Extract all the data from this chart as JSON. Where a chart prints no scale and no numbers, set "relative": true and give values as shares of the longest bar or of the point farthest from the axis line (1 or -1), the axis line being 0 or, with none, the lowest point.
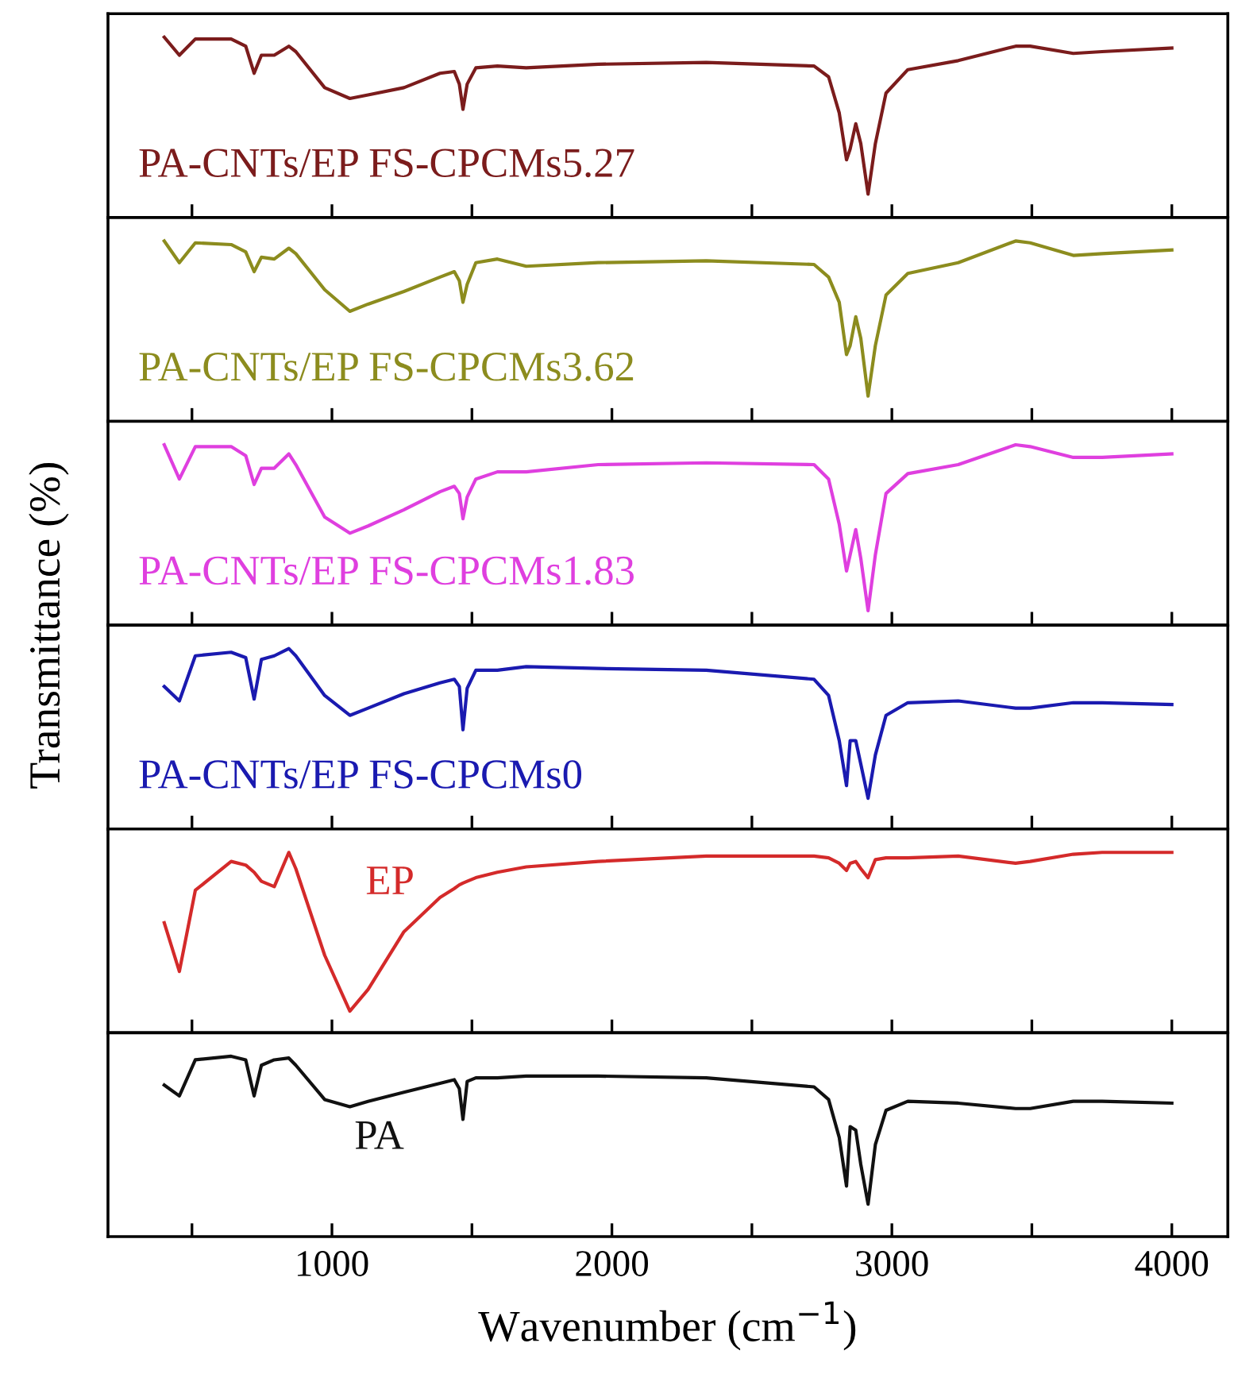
{
  "chart_data": [
    {
      "type": "line",
      "relative": true,
      "tick_labels": false,
      "xlim": [
        200,
        4200
      ],
      "xticks": [
        {
          "value": 500,
          "label": null
        },
        {
          "value": 1000,
          "label": null
        },
        {
          "value": 1500,
          "label": null
        },
        {
          "value": 2000,
          "label": null
        },
        {
          "value": 2500,
          "label": null
        },
        {
          "value": 3000,
          "label": null
        },
        {
          "value": 3500,
          "label": null
        },
        {
          "value": 4000,
          "label": null
        }
      ],
      "x": [
        401,
        455,
        512,
        640,
        692,
        722,
        748,
        794,
        846,
        871,
        974,
        1064,
        1129,
        1257,
        1386,
        1437,
        1455,
        1468,
        1483,
        1514,
        1591,
        1694,
        1951,
        2337,
        2722,
        2774,
        2812,
        2838,
        2851,
        2871,
        2889,
        2915,
        2941,
        2979,
        3057,
        3237,
        3442,
        3494,
        3648,
        3751,
        4000
      ],
      "series": [
        {
          "name": "PA-CNTs/EP FS-CPCMs5.27",
          "color": "#7b1c1c",
          "values": [
            1.0,
            0.9,
            0.99,
            0.99,
            0.95,
            0.8,
            0.9,
            0.9,
            0.95,
            0.92,
            0.72,
            0.66,
            0.68,
            0.72,
            0.8,
            0.81,
            0.74,
            0.6,
            0.74,
            0.83,
            0.84,
            0.83,
            0.85,
            0.86,
            0.84,
            0.78,
            0.58,
            0.32,
            0.38,
            0.52,
            0.41,
            0.13,
            0.41,
            0.69,
            0.82,
            0.87,
            0.95,
            0.95,
            0.91,
            0.92,
            0.94
          ]
        }
      ]
    },
    {
      "type": "line",
      "relative": true,
      "tick_labels": false,
      "xlim": [
        200,
        4200
      ],
      "xticks": [
        {
          "value": 500,
          "label": null
        },
        {
          "value": 1000,
          "label": null
        },
        {
          "value": 1500,
          "label": null
        },
        {
          "value": 2000,
          "label": null
        },
        {
          "value": 2500,
          "label": null
        },
        {
          "value": 3000,
          "label": null
        },
        {
          "value": 3500,
          "label": null
        },
        {
          "value": 4000,
          "label": null
        }
      ],
      "x": [
        401,
        455,
        512,
        640,
        692,
        722,
        748,
        794,
        846,
        871,
        974,
        1064,
        1129,
        1257,
        1386,
        1437,
        1455,
        1468,
        1483,
        1514,
        1591,
        1694,
        1951,
        2337,
        2722,
        2774,
        2812,
        2838,
        2851,
        2871,
        2889,
        2915,
        2941,
        2979,
        3057,
        3237,
        3442,
        3494,
        3648,
        3751,
        4000
      ],
      "series": [
        {
          "name": "PA-CNTs/EP FS-CPCMs3.62",
          "color": "#8c8c1e",
          "values": [
            1.0,
            0.88,
            0.99,
            0.98,
            0.94,
            0.83,
            0.91,
            0.9,
            0.96,
            0.93,
            0.73,
            0.61,
            0.65,
            0.72,
            0.8,
            0.83,
            0.78,
            0.66,
            0.76,
            0.88,
            0.9,
            0.86,
            0.88,
            0.89,
            0.87,
            0.8,
            0.66,
            0.37,
            0.42,
            0.58,
            0.46,
            0.14,
            0.42,
            0.7,
            0.82,
            0.88,
            1.0,
            0.99,
            0.92,
            0.93,
            0.95
          ]
        }
      ]
    },
    {
      "type": "line",
      "relative": true,
      "tick_labels": false,
      "xlim": [
        200,
        4200
      ],
      "xticks": [
        {
          "value": 500,
          "label": null
        },
        {
          "value": 1000,
          "label": null
        },
        {
          "value": 1500,
          "label": null
        },
        {
          "value": 2000,
          "label": null
        },
        {
          "value": 2500,
          "label": null
        },
        {
          "value": 3000,
          "label": null
        },
        {
          "value": 3500,
          "label": null
        },
        {
          "value": 4000,
          "label": null
        }
      ],
      "x": [
        401,
        455,
        512,
        640,
        692,
        722,
        748,
        794,
        846,
        871,
        974,
        1064,
        1129,
        1257,
        1386,
        1437,
        1455,
        1468,
        1483,
        1514,
        1591,
        1694,
        1951,
        2337,
        2722,
        2774,
        2812,
        2838,
        2851,
        2871,
        2889,
        2915,
        2941,
        2979,
        3057,
        3237,
        3442,
        3494,
        3648,
        3751,
        4000
      ],
      "series": [
        {
          "name": "PA-CNTs/EP FS-CPCMs1.83",
          "color": "#df3fdf",
          "values": [
            1.0,
            0.81,
            0.99,
            0.99,
            0.94,
            0.78,
            0.87,
            0.87,
            0.95,
            0.89,
            0.6,
            0.51,
            0.55,
            0.64,
            0.74,
            0.77,
            0.73,
            0.59,
            0.71,
            0.81,
            0.85,
            0.85,
            0.89,
            0.9,
            0.89,
            0.81,
            0.56,
            0.3,
            0.39,
            0.53,
            0.37,
            0.08,
            0.39,
            0.73,
            0.84,
            0.89,
            1.0,
            0.99,
            0.93,
            0.93,
            0.95
          ]
        }
      ]
    },
    {
      "type": "line",
      "relative": true,
      "ylabel": "Transmittance (%)",
      "tick_labels": false,
      "xlim": [
        200,
        4200
      ],
      "xticks": [
        {
          "value": 500,
          "label": null
        },
        {
          "value": 1000,
          "label": null
        },
        {
          "value": 1500,
          "label": null
        },
        {
          "value": 2000,
          "label": null
        },
        {
          "value": 2500,
          "label": null
        },
        {
          "value": 3000,
          "label": null
        },
        {
          "value": 3500,
          "label": null
        },
        {
          "value": 4000,
          "label": null
        }
      ],
      "x": [
        401,
        455,
        512,
        640,
        692,
        722,
        748,
        794,
        846,
        871,
        974,
        1064,
        1129,
        1257,
        1386,
        1437,
        1455,
        1468,
        1483,
        1514,
        1591,
        1694,
        1951,
        2337,
        2722,
        2774,
        2812,
        2838,
        2851,
        2871,
        2889,
        2915,
        2941,
        2979,
        3057,
        3237,
        3442,
        3494,
        3648,
        3751,
        4000
      ],
      "series": [
        {
          "name": "PA-CNTs/EP FS-CPCMs0",
          "color": "#1a1ab0",
          "values": [
            0.79,
            0.71,
            0.96,
            0.98,
            0.95,
            0.72,
            0.94,
            0.96,
            1.0,
            0.96,
            0.74,
            0.63,
            0.67,
            0.75,
            0.81,
            0.83,
            0.79,
            0.55,
            0.78,
            0.88,
            0.88,
            0.9,
            0.89,
            0.88,
            0.83,
            0.74,
            0.49,
            0.24,
            0.49,
            0.49,
            0.36,
            0.17,
            0.41,
            0.63,
            0.7,
            0.71,
            0.67,
            0.67,
            0.7,
            0.7,
            0.69
          ]
        }
      ]
    },
    {
      "type": "line",
      "relative": true,
      "tick_labels": false,
      "xlim": [
        200,
        4200
      ],
      "xticks": [
        {
          "value": 500,
          "label": null
        },
        {
          "value": 1000,
          "label": null
        },
        {
          "value": 1500,
          "label": null
        },
        {
          "value": 2000,
          "label": null
        },
        {
          "value": 2500,
          "label": null
        },
        {
          "value": 3000,
          "label": null
        },
        {
          "value": 3500,
          "label": null
        },
        {
          "value": 4000,
          "label": null
        }
      ],
      "x": [
        401,
        455,
        512,
        640,
        692,
        722,
        748,
        794,
        846,
        871,
        974,
        1064,
        1129,
        1257,
        1386,
        1437,
        1455,
        1468,
        1483,
        1514,
        1591,
        1694,
        1951,
        2337,
        2722,
        2774,
        2812,
        2838,
        2851,
        2871,
        2889,
        2915,
        2941,
        2979,
        3057,
        3237,
        3442,
        3494,
        3648,
        3751,
        4000
      ],
      "series": [
        {
          "name": "EP",
          "color": "#d42a2a",
          "values": [
            0.61,
            0.34,
            0.79,
            0.95,
            0.93,
            0.89,
            0.84,
            0.81,
            1.0,
            0.91,
            0.43,
            0.12,
            0.24,
            0.56,
            0.75,
            0.8,
            0.82,
            0.83,
            0.84,
            0.86,
            0.89,
            0.92,
            0.95,
            0.98,
            0.98,
            0.97,
            0.94,
            0.9,
            0.94,
            0.95,
            0.91,
            0.86,
            0.96,
            0.97,
            0.97,
            0.98,
            0.94,
            0.95,
            0.99,
            1.0,
            1.0
          ]
        }
      ]
    },
    {
      "type": "line",
      "relative": true,
      "tick_labels": "x",
      "xlabel": "Wavenumber (cm$^{−1}$)",
      "xlim": [
        200,
        4200
      ],
      "xticks": [
        {
          "value": 500,
          "label": null
        },
        1000,
        {
          "value": 1500,
          "label": null
        },
        2000,
        {
          "value": 2500,
          "label": null
        },
        3000,
        {
          "value": 3500,
          "label": null
        },
        4000
      ],
      "x": [
        401,
        455,
        512,
        640,
        692,
        722,
        748,
        794,
        846,
        871,
        974,
        1064,
        1129,
        1257,
        1386,
        1437,
        1455,
        1468,
        1483,
        1514,
        1591,
        1694,
        1951,
        2337,
        2722,
        2774,
        2812,
        2838,
        2851,
        2871,
        2889,
        2915,
        2941,
        2979,
        3057,
        3237,
        3442,
        3494,
        3648,
        3751,
        4000
      ],
      "series": [
        {
          "name": "PA",
          "color": "#111111",
          "values": [
            0.84,
            0.78,
            0.98,
            1.0,
            0.98,
            0.78,
            0.95,
            0.98,
            0.99,
            0.95,
            0.76,
            0.72,
            0.75,
            0.8,
            0.85,
            0.87,
            0.82,
            0.65,
            0.86,
            0.88,
            0.88,
            0.89,
            0.89,
            0.88,
            0.83,
            0.76,
            0.55,
            0.28,
            0.61,
            0.59,
            0.4,
            0.18,
            0.51,
            0.7,
            0.75,
            0.74,
            0.71,
            0.71,
            0.75,
            0.75,
            0.74
          ]
        }
      ]
    }
  ]
}
